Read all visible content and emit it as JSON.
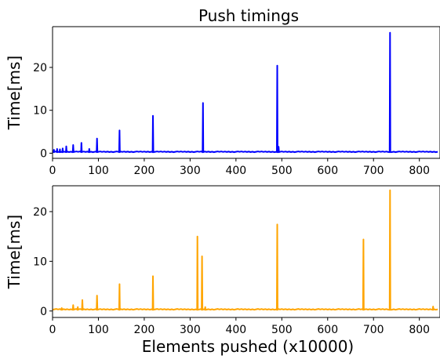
{
  "chart_data": [
    {
      "type": "line",
      "title": "Push timings",
      "xlabel": "",
      "ylabel": "Time[ms]",
      "xlim": [
        0,
        845
      ],
      "ylim": [
        -1.2,
        29.5
      ],
      "xticks": [
        0,
        100,
        200,
        300,
        400,
        500,
        600,
        700,
        800
      ],
      "yticks": [
        0,
        10,
        20
      ],
      "grid": false,
      "series": [
        {
          "color": "#0000ff",
          "baseline": 0.25,
          "spikes": [
            {
              "x": 3,
              "y": 0.8
            },
            {
              "x": 10,
              "y": 1.0
            },
            {
              "x": 16,
              "y": 0.9
            },
            {
              "x": 22,
              "y": 1.1
            },
            {
              "x": 30,
              "y": 1.6
            },
            {
              "x": 45,
              "y": 1.9
            },
            {
              "x": 63,
              "y": 2.4
            },
            {
              "x": 80,
              "y": 1.0
            },
            {
              "x": 97,
              "y": 3.4
            },
            {
              "x": 146,
              "y": 5.3
            },
            {
              "x": 219,
              "y": 8.7
            },
            {
              "x": 328,
              "y": 11.7
            },
            {
              "x": 490,
              "y": 20.4
            },
            {
              "x": 493,
              "y": 1.5
            },
            {
              "x": 736,
              "y": 28.1
            }
          ]
        }
      ]
    },
    {
      "type": "line",
      "xlabel": "Elements pushed (x10000)",
      "ylabel": "Time[ms]",
      "xlim": [
        0,
        845
      ],
      "ylim": [
        -1.3,
        25.2
      ],
      "xticks": [
        0,
        100,
        200,
        300,
        400,
        500,
        600,
        700,
        800
      ],
      "yticks": [
        0,
        10,
        20
      ],
      "grid": false,
      "series": [
        {
          "color": "#ffa500",
          "baseline": 0.25,
          "spikes": [
            {
              "x": 20,
              "y": 0.6
            },
            {
              "x": 45,
              "y": 1.2
            },
            {
              "x": 55,
              "y": 0.8
            },
            {
              "x": 65,
              "y": 2.2
            },
            {
              "x": 97,
              "y": 3.1
            },
            {
              "x": 146,
              "y": 5.4
            },
            {
              "x": 219,
              "y": 7.0
            },
            {
              "x": 316,
              "y": 15.0
            },
            {
              "x": 326,
              "y": 11.0
            },
            {
              "x": 333,
              "y": 0.8
            },
            {
              "x": 490,
              "y": 17.4
            },
            {
              "x": 678,
              "y": 14.4
            },
            {
              "x": 736,
              "y": 24.3
            },
            {
              "x": 830,
              "y": 0.9
            }
          ]
        }
      ]
    }
  ]
}
